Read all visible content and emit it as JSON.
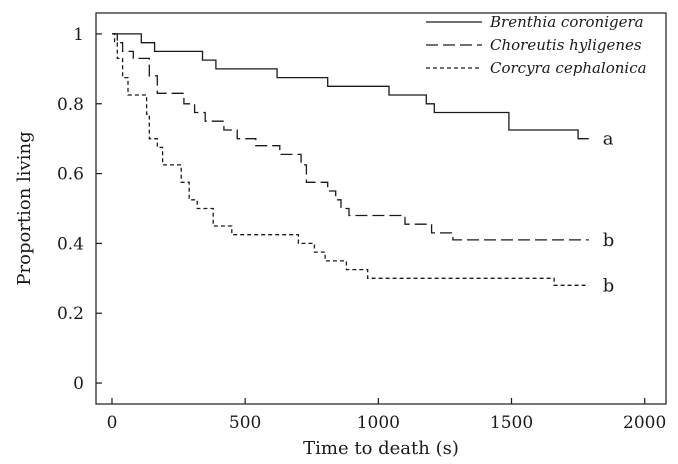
{
  "chart_data": {
    "type": "line",
    "title": "",
    "xlabel": "Time to death (s)",
    "ylabel": "Proportion living",
    "xlim": [
      -60,
      2080
    ],
    "ylim": [
      -0.06,
      1.06
    ],
    "xticks": [
      0,
      500,
      1000,
      1500,
      2000
    ],
    "yticks": [
      0,
      0.2,
      0.4,
      0.6,
      0.8,
      1
    ],
    "xtick_labels": [
      "0",
      "500",
      "1000",
      "1500",
      "2000"
    ],
    "ytick_labels": [
      "0",
      "0.2",
      "0.4",
      "0.6",
      "0.8",
      "1"
    ],
    "grid": false,
    "legend_position": "top-right",
    "series": [
      {
        "name": "Brenthia coronigera",
        "dash": "solid",
        "color": "#1a1a1a",
        "end_label": "a",
        "points": [
          [
            0,
            1
          ],
          [
            110,
            1
          ],
          [
            110,
            0.975
          ],
          [
            160,
            0.975
          ],
          [
            160,
            0.95
          ],
          [
            340,
            0.95
          ],
          [
            340,
            0.925
          ],
          [
            390,
            0.925
          ],
          [
            390,
            0.9
          ],
          [
            620,
            0.9
          ],
          [
            620,
            0.875
          ],
          [
            810,
            0.875
          ],
          [
            810,
            0.85
          ],
          [
            1040,
            0.85
          ],
          [
            1040,
            0.825
          ],
          [
            1180,
            0.825
          ],
          [
            1180,
            0.8
          ],
          [
            1210,
            0.8
          ],
          [
            1210,
            0.775
          ],
          [
            1490,
            0.775
          ],
          [
            1490,
            0.725
          ],
          [
            1750,
            0.725
          ],
          [
            1750,
            0.7
          ],
          [
            1790,
            0.7
          ]
        ]
      },
      {
        "name": "Choreutis hyligenes",
        "dash": "long-dash",
        "color": "#1a1a1a",
        "end_label": "b",
        "points": [
          [
            0,
            1
          ],
          [
            20,
            1
          ],
          [
            20,
            0.975
          ],
          [
            40,
            0.975
          ],
          [
            40,
            0.95
          ],
          [
            80,
            0.95
          ],
          [
            80,
            0.93
          ],
          [
            140,
            0.93
          ],
          [
            140,
            0.88
          ],
          [
            170,
            0.88
          ],
          [
            170,
            0.83
          ],
          [
            270,
            0.83
          ],
          [
            270,
            0.8
          ],
          [
            310,
            0.8
          ],
          [
            310,
            0.775
          ],
          [
            350,
            0.775
          ],
          [
            350,
            0.75
          ],
          [
            420,
            0.75
          ],
          [
            420,
            0.725
          ],
          [
            470,
            0.725
          ],
          [
            470,
            0.7
          ],
          [
            540,
            0.7
          ],
          [
            540,
            0.68
          ],
          [
            630,
            0.68
          ],
          [
            630,
            0.655
          ],
          [
            710,
            0.655
          ],
          [
            710,
            0.625
          ],
          [
            730,
            0.625
          ],
          [
            730,
            0.575
          ],
          [
            810,
            0.575
          ],
          [
            810,
            0.55
          ],
          [
            840,
            0.55
          ],
          [
            840,
            0.525
          ],
          [
            860,
            0.525
          ],
          [
            860,
            0.5
          ],
          [
            890,
            0.5
          ],
          [
            890,
            0.48
          ],
          [
            1100,
            0.48
          ],
          [
            1100,
            0.455
          ],
          [
            1200,
            0.455
          ],
          [
            1200,
            0.43
          ],
          [
            1280,
            0.43
          ],
          [
            1280,
            0.41
          ],
          [
            1790,
            0.41
          ]
        ]
      },
      {
        "name": "Corcyra cephalonica",
        "dash": "short-dash",
        "color": "#1a1a1a",
        "end_label": "b",
        "points": [
          [
            0,
            1
          ],
          [
            10,
            1
          ],
          [
            10,
            0.975
          ],
          [
            20,
            0.975
          ],
          [
            20,
            0.93
          ],
          [
            40,
            0.93
          ],
          [
            40,
            0.875
          ],
          [
            60,
            0.875
          ],
          [
            60,
            0.825
          ],
          [
            130,
            0.825
          ],
          [
            130,
            0.77
          ],
          [
            140,
            0.77
          ],
          [
            140,
            0.7
          ],
          [
            170,
            0.7
          ],
          [
            170,
            0.675
          ],
          [
            190,
            0.675
          ],
          [
            190,
            0.625
          ],
          [
            260,
            0.625
          ],
          [
            260,
            0.575
          ],
          [
            290,
            0.575
          ],
          [
            290,
            0.525
          ],
          [
            320,
            0.525
          ],
          [
            320,
            0.5
          ],
          [
            380,
            0.5
          ],
          [
            380,
            0.45
          ],
          [
            450,
            0.45
          ],
          [
            450,
            0.425
          ],
          [
            700,
            0.425
          ],
          [
            700,
            0.4
          ],
          [
            760,
            0.4
          ],
          [
            760,
            0.375
          ],
          [
            800,
            0.375
          ],
          [
            800,
            0.35
          ],
          [
            880,
            0.35
          ],
          [
            880,
            0.325
          ],
          [
            960,
            0.325
          ],
          [
            960,
            0.3
          ],
          [
            1660,
            0.3
          ],
          [
            1660,
            0.28
          ],
          [
            1790,
            0.28
          ]
        ]
      }
    ]
  }
}
